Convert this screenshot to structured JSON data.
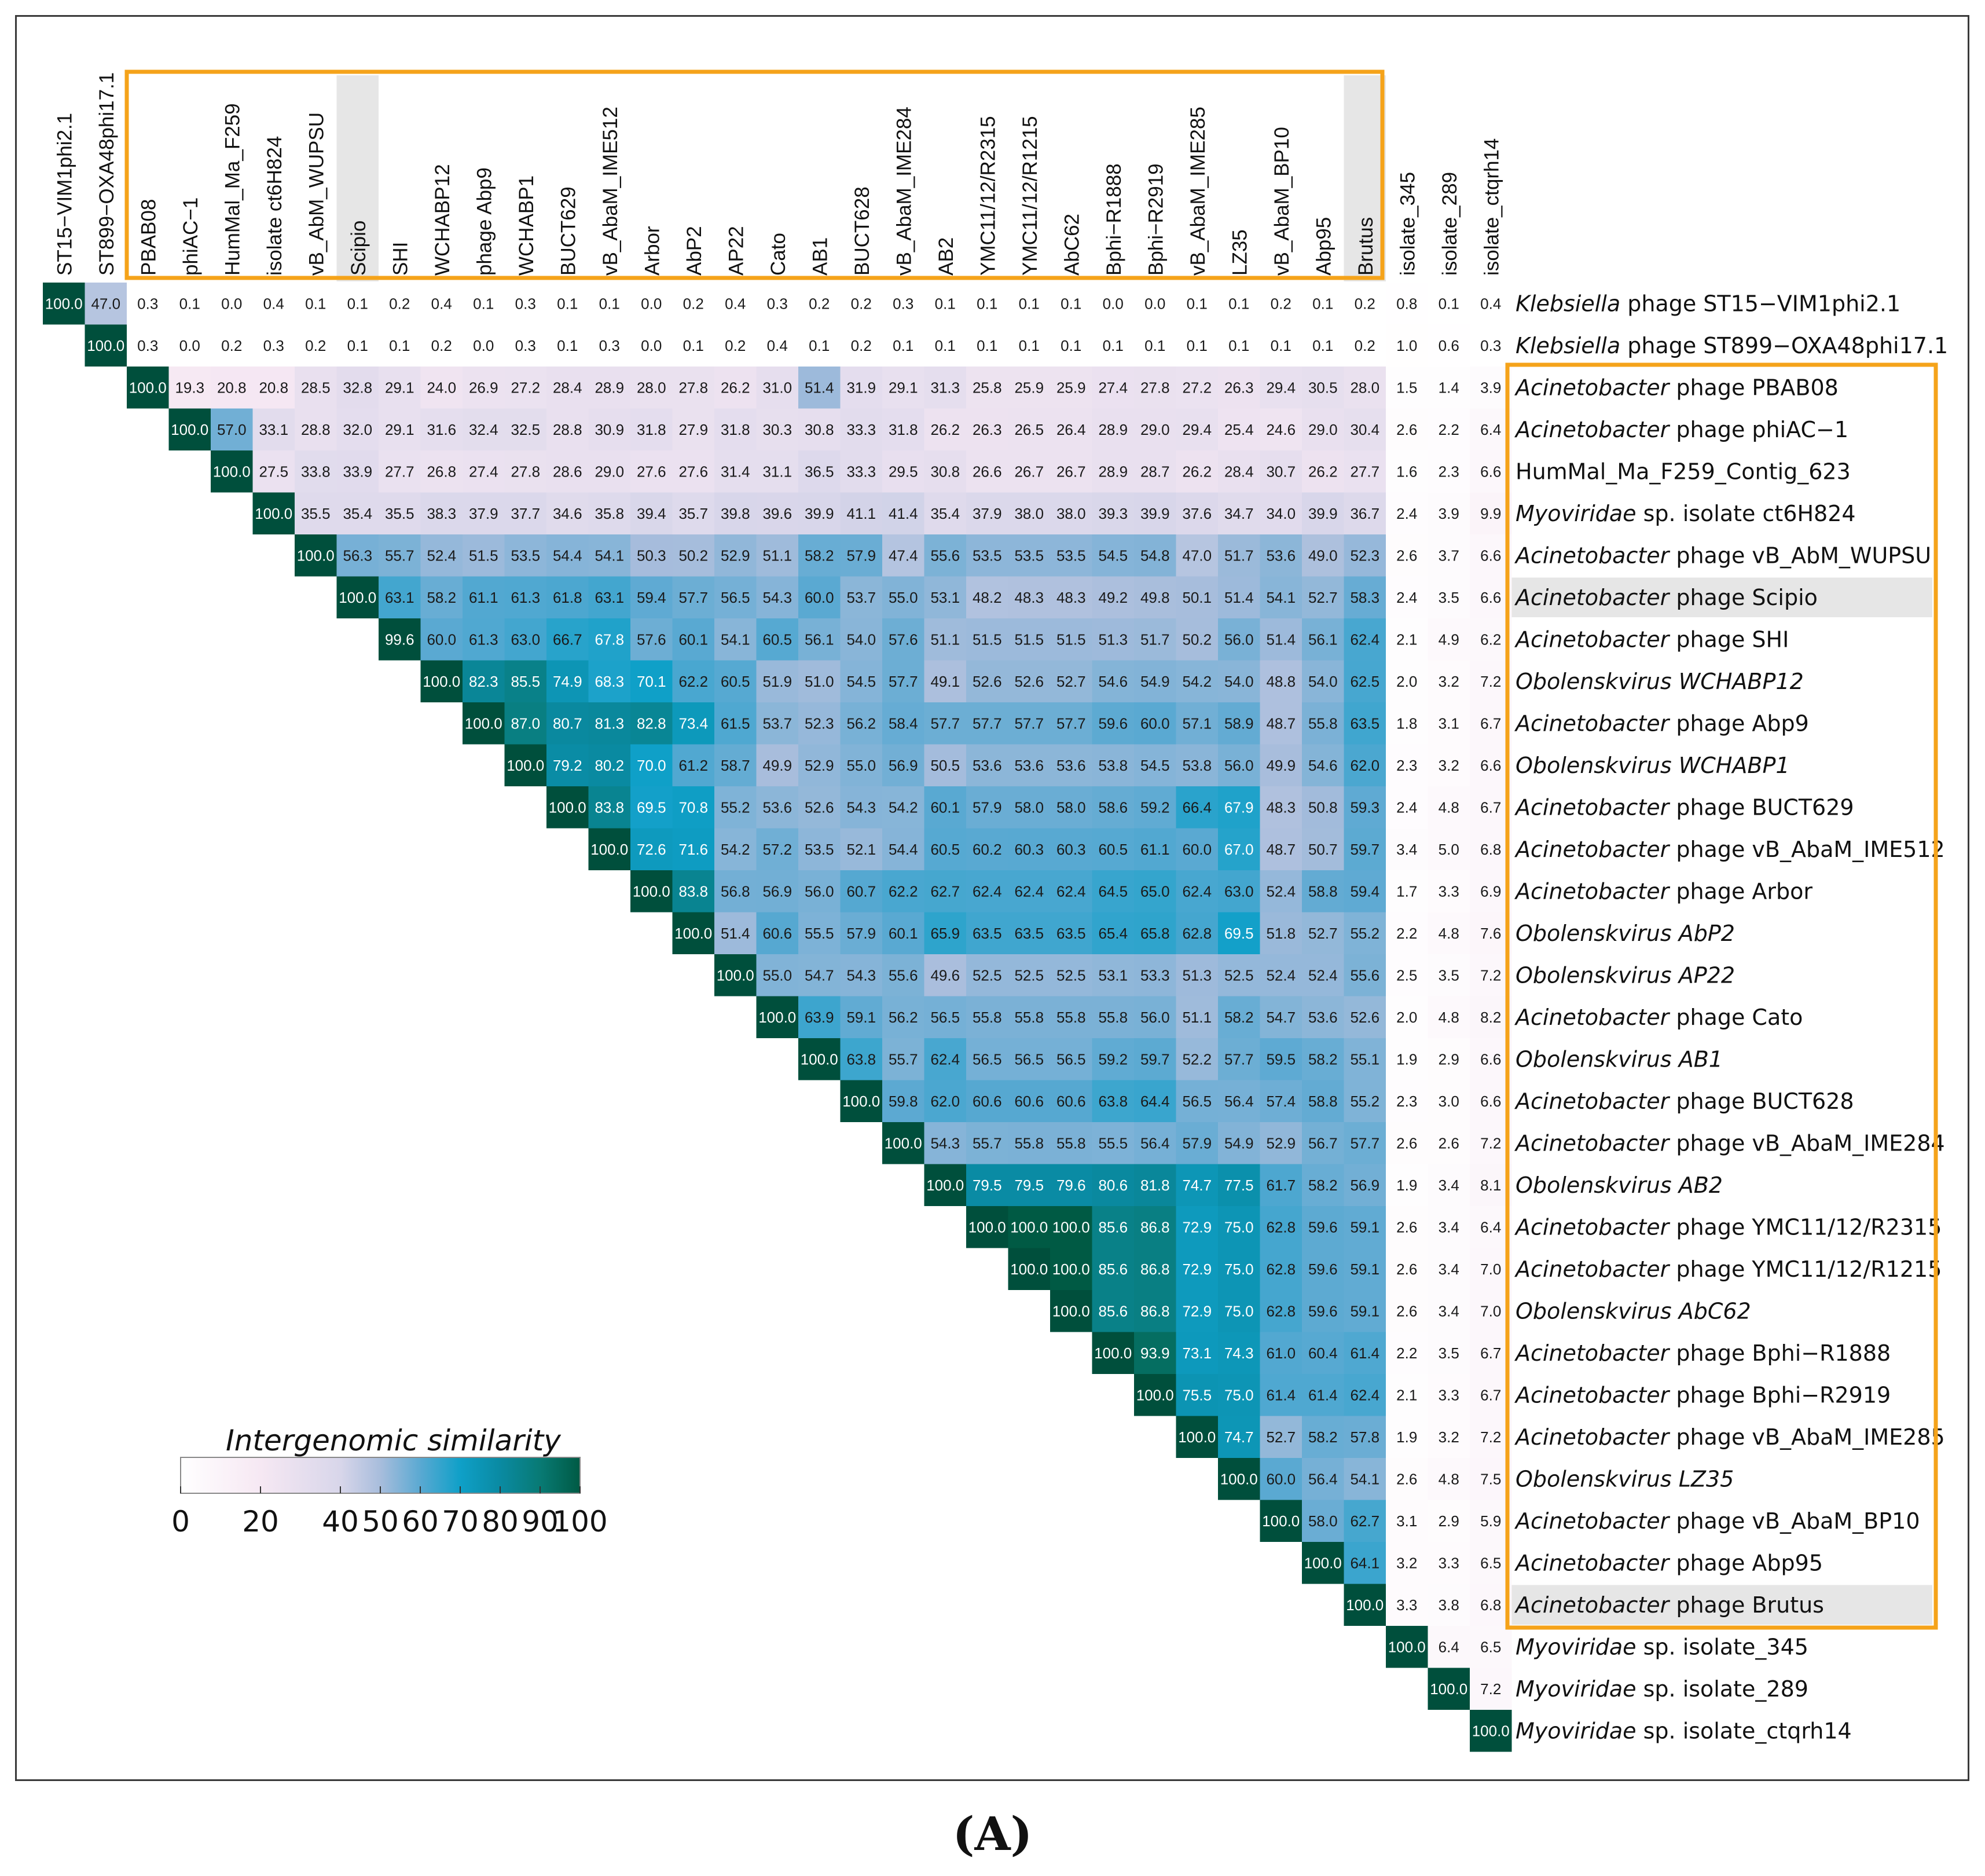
{
  "figure": {
    "panel_label": "(A)"
  },
  "chart_data": {
    "type": "heatmap",
    "title": "",
    "legend_title": "Intergenomic similarity",
    "legend_ticks": [
      0,
      20,
      40,
      50,
      60,
      70,
      80,
      90,
      100
    ],
    "value_range": [
      0,
      100
    ],
    "colors": {
      "stops": [
        "#ffffff",
        "#f6e8f3",
        "#d8d6ea",
        "#a8bddc",
        "#5aa9d2",
        "#0fa0c8",
        "#0a8aa2",
        "#087a74",
        "#005a44"
      ],
      "box": "#f5a31a",
      "highlight": "#e6e6e6"
    },
    "column_labels": [
      "ST15−VIM1phi2.1",
      "ST899−OXA48phi17.1",
      "PBAB08",
      "phiAC−1",
      "HumMal_Ma_F259",
      "isolate ct6H824",
      "vB_AbM_WUPSU",
      "Scipio",
      "SHI",
      "WCHABP12",
      "phage Abp9",
      "WCHABP1",
      "BUCT629",
      "vB_AbaM_IME512",
      "Arbor",
      "AbP2",
      "AP22",
      "Cato",
      "AB1",
      "BUCT628",
      "vB_AbaM_IME284",
      "AB2",
      "YMC11/12/R2315",
      "YMC11/12/R1215",
      "AbC62",
      "Bphi−R1888",
      "Bphi−R2919",
      "vB_AbaM_IME285",
      "LZ35",
      "vB_AbaM_BP10",
      "Abp95",
      "Brutus",
      "isolate_345",
      "isolate_289",
      "isolate_ctqrh14"
    ],
    "row_labels": [
      {
        "italic": "Klebsiella",
        "rest": " phage ST15−VIM1phi2.1"
      },
      {
        "italic": "Klebsiella",
        "rest": " phage ST899−OXA48phi17.1"
      },
      {
        "italic": "Acinetobacter",
        "rest": " phage PBAB08"
      },
      {
        "italic": "Acinetobacter",
        "rest": " phage phiAC−1"
      },
      {
        "italic": "",
        "rest": "HumMal_Ma_F259_Contig_623"
      },
      {
        "italic": "Myoviridae",
        "rest": " sp. isolate ct6H824"
      },
      {
        "italic": "Acinetobacter",
        "rest": " phage vB_AbM_WUPSU"
      },
      {
        "italic": "Acinetobacter",
        "rest": " phage Scipio"
      },
      {
        "italic": "Acinetobacter",
        "rest": " phage SHI"
      },
      {
        "italic": "Obolenskvirus WCHABP12",
        "rest": ""
      },
      {
        "italic": "Acinetobacter",
        "rest": " phage Abp9"
      },
      {
        "italic": "Obolenskvirus WCHABP1",
        "rest": ""
      },
      {
        "italic": "Acinetobacter",
        "rest": " phage BUCT629"
      },
      {
        "italic": "Acinetobacter",
        "rest": " phage vB_AbaM_IME512"
      },
      {
        "italic": "Acinetobacter",
        "rest": " phage Arbor"
      },
      {
        "italic": "Obolenskvirus AbP2",
        "rest": ""
      },
      {
        "italic": "Obolenskvirus AP22",
        "rest": ""
      },
      {
        "italic": "Acinetobacter",
        "rest": " phage Cato"
      },
      {
        "italic": "Obolenskvirus AB1",
        "rest": ""
      },
      {
        "italic": "Acinetobacter",
        "rest": " phage BUCT628"
      },
      {
        "italic": "Acinetobacter",
        "rest": " phage vB_AbaM_IME284"
      },
      {
        "italic": "Obolenskvirus AB2",
        "rest": ""
      },
      {
        "italic": "Acinetobacter",
        "rest": " phage YMC11/12/R2315"
      },
      {
        "italic": "Acinetobacter",
        "rest": " phage YMC11/12/R1215"
      },
      {
        "italic": "Obolenskvirus AbC62",
        "rest": ""
      },
      {
        "italic": "Acinetobacter",
        "rest": " phage Bphi−R1888"
      },
      {
        "italic": "Acinetobacter",
        "rest": " phage Bphi−R2919"
      },
      {
        "italic": "Acinetobacter",
        "rest": " phage vB_AbaM_IME285"
      },
      {
        "italic": "Obolenskvirus LZ35",
        "rest": ""
      },
      {
        "italic": "Acinetobacter",
        "rest": " phage vB_AbaM_BP10"
      },
      {
        "italic": "Acinetobacter",
        "rest": " phage Abp95"
      },
      {
        "italic": "Acinetobacter",
        "rest": " phage Brutus"
      },
      {
        "italic": "Myoviridae",
        "rest": " sp. isolate_345"
      },
      {
        "italic": "Myoviridae",
        "rest": " sp. isolate_289"
      },
      {
        "italic": "Myoviridae",
        "rest": " sp. isolate_ctqrh14"
      }
    ],
    "highlighted": [
      "Scipio",
      "Brutus"
    ],
    "boxed_range": {
      "first": "PBAB08",
      "last": "Brutus"
    },
    "values": [
      [
        100.0,
        47.0,
        0.3,
        0.1,
        0.0,
        0.4,
        0.1,
        0.1,
        0.2,
        0.4,
        0.1,
        0.3,
        0.1,
        0.1,
        0.0,
        0.2,
        0.4,
        0.3,
        0.2,
        0.2,
        0.3,
        0.1,
        0.1,
        0.1,
        0.1,
        0.0,
        0.0,
        0.1,
        0.1,
        0.2,
        0.1,
        0.2,
        0.8,
        0.1,
        0.4
      ],
      [
        100.0,
        0.3,
        0.0,
        0.2,
        0.3,
        0.2,
        0.1,
        0.1,
        0.2,
        0.0,
        0.3,
        0.1,
        0.3,
        0.0,
        0.1,
        0.2,
        0.4,
        0.1,
        0.2,
        0.1,
        0.1,
        0.1,
        0.1,
        0.1,
        0.1,
        0.1,
        0.1,
        0.1,
        0.1,
        0.1,
        0.2,
        1.0,
        0.6,
        0.3
      ],
      [
        100.0,
        19.3,
        20.8,
        20.8,
        28.5,
        32.8,
        29.1,
        24.0,
        26.9,
        27.2,
        28.4,
        28.9,
        28.0,
        27.8,
        26.2,
        31.0,
        51.4,
        31.9,
        29.1,
        31.3,
        25.8,
        25.9,
        25.9,
        27.4,
        27.8,
        27.2,
        26.3,
        29.4,
        30.5,
        28.0,
        1.5,
        1.4,
        3.9
      ],
      [
        100.0,
        57.0,
        33.1,
        28.8,
        32.0,
        29.1,
        31.6,
        32.4,
        32.5,
        28.8,
        30.9,
        31.8,
        27.9,
        31.8,
        30.3,
        30.8,
        33.3,
        31.8,
        26.2,
        26.3,
        26.5,
        26.4,
        28.9,
        29.0,
        29.4,
        25.4,
        24.6,
        29.0,
        30.4,
        2.6,
        2.2,
        6.4
      ],
      [
        100.0,
        27.5,
        33.8,
        33.9,
        27.7,
        26.8,
        27.4,
        27.8,
        28.6,
        29.0,
        27.6,
        27.6,
        31.4,
        31.1,
        36.5,
        33.3,
        29.5,
        30.8,
        26.6,
        26.7,
        26.7,
        28.9,
        28.7,
        26.2,
        28.4,
        30.7,
        26.2,
        27.7,
        1.6,
        2.3,
        6.6
      ],
      [
        100.0,
        35.5,
        35.4,
        35.5,
        38.3,
        37.9,
        37.7,
        34.6,
        35.8,
        39.4,
        35.7,
        39.8,
        39.6,
        39.9,
        41.1,
        41.4,
        35.4,
        37.9,
        38.0,
        38.0,
        39.3,
        39.9,
        37.6,
        34.7,
        34.0,
        39.9,
        36.7,
        2.4,
        3.9,
        9.9
      ],
      [
        100.0,
        56.3,
        55.7,
        52.4,
        51.5,
        53.5,
        54.4,
        54.1,
        50.3,
        50.2,
        52.9,
        51.1,
        58.2,
        57.9,
        47.4,
        55.6,
        53.5,
        53.5,
        53.5,
        54.5,
        54.8,
        47.0,
        51.7,
        53.6,
        49.0,
        52.3,
        2.6,
        3.7,
        6.6
      ],
      [
        100.0,
        63.1,
        58.2,
        61.1,
        61.3,
        61.8,
        63.1,
        59.4,
        57.7,
        56.5,
        54.3,
        60.0,
        53.7,
        55.0,
        53.1,
        48.2,
        48.3,
        48.3,
        49.2,
        49.8,
        50.1,
        51.4,
        54.1,
        52.7,
        58.3,
        2.4,
        3.5,
        6.6
      ],
      [
        99.6,
        60.0,
        61.3,
        63.0,
        66.7,
        67.8,
        57.6,
        60.1,
        54.1,
        60.5,
        56.1,
        54.0,
        57.6,
        51.1,
        51.5,
        51.5,
        51.5,
        51.3,
        51.7,
        50.2,
        56.0,
        51.4,
        56.1,
        62.4,
        2.1,
        4.9,
        6.2
      ],
      [
        100.0,
        82.3,
        85.5,
        74.9,
        68.3,
        70.1,
        62.2,
        60.5,
        51.9,
        51.0,
        54.5,
        57.7,
        49.1,
        52.6,
        52.6,
        52.7,
        54.6,
        54.9,
        54.2,
        54.0,
        48.8,
        54.0,
        62.5,
        2.0,
        3.2,
        7.2
      ],
      [
        100.0,
        87.0,
        80.7,
        81.3,
        82.8,
        73.4,
        61.5,
        53.7,
        52.3,
        56.2,
        58.4,
        57.7,
        57.7,
        57.7,
        57.7,
        59.6,
        60.0,
        57.1,
        58.9,
        48.7,
        55.8,
        63.5,
        1.8,
        3.1,
        6.7
      ],
      [
        100.0,
        79.2,
        80.2,
        70.0,
        61.2,
        58.7,
        49.9,
        52.9,
        55.0,
        56.9,
        50.5,
        53.6,
        53.6,
        53.6,
        53.8,
        54.5,
        53.8,
        56.0,
        49.9,
        54.6,
        62.0,
        2.3,
        3.2,
        6.6
      ],
      [
        100.0,
        83.8,
        69.5,
        70.8,
        55.2,
        53.6,
        52.6,
        54.3,
        54.2,
        60.1,
        57.9,
        58.0,
        58.0,
        58.6,
        59.2,
        66.4,
        67.9,
        48.3,
        50.8,
        59.3,
        2.4,
        4.8,
        6.7
      ],
      [
        100.0,
        72.6,
        71.6,
        54.2,
        57.2,
        53.5,
        52.1,
        54.4,
        60.5,
        60.2,
        60.3,
        60.3,
        60.5,
        61.1,
        60.0,
        67.0,
        48.7,
        50.7,
        59.7,
        3.4,
        5.0,
        6.8
      ],
      [
        100.0,
        83.8,
        56.8,
        56.9,
        56.0,
        60.7,
        62.2,
        62.7,
        62.4,
        62.4,
        62.4,
        64.5,
        65.0,
        62.4,
        63.0,
        52.4,
        58.8,
        59.4,
        1.7,
        3.3,
        6.9
      ],
      [
        100.0,
        51.4,
        60.6,
        55.5,
        57.9,
        60.1,
        65.9,
        63.5,
        63.5,
        63.5,
        65.4,
        65.8,
        62.8,
        69.5,
        51.8,
        52.7,
        55.2,
        2.2,
        4.8,
        7.6
      ],
      [
        100.0,
        55.0,
        54.7,
        54.3,
        55.6,
        49.6,
        52.5,
        52.5,
        52.5,
        53.1,
        53.3,
        51.3,
        52.5,
        52.4,
        52.4,
        55.6,
        2.5,
        3.5,
        7.2
      ],
      [
        100.0,
        63.9,
        59.1,
        56.2,
        56.5,
        55.8,
        55.8,
        55.8,
        55.8,
        56.0,
        51.1,
        58.2,
        54.7,
        53.6,
        52.6,
        2.0,
        4.8,
        8.2
      ],
      [
        100.0,
        63.8,
        55.7,
        62.4,
        56.5,
        56.5,
        56.5,
        59.2,
        59.7,
        52.2,
        57.7,
        59.5,
        58.2,
        55.1,
        1.9,
        2.9,
        6.6
      ],
      [
        100.0,
        59.8,
        62.0,
        60.6,
        60.6,
        60.6,
        63.8,
        64.4,
        56.5,
        56.4,
        57.4,
        58.8,
        55.2,
        2.3,
        3.0,
        6.6
      ],
      [
        100.0,
        54.3,
        55.7,
        55.8,
        55.8,
        55.5,
        56.4,
        57.9,
        54.9,
        52.9,
        56.7,
        57.7,
        2.6,
        2.6,
        7.2
      ],
      [
        100.0,
        79.5,
        79.5,
        79.6,
        80.6,
        81.8,
        74.7,
        77.5,
        61.7,
        58.2,
        56.9,
        1.9,
        3.4,
        8.1
      ],
      [
        100.0,
        100.0,
        100.0,
        85.6,
        86.8,
        72.9,
        75.0,
        62.8,
        59.6,
        59.1,
        2.6,
        3.4,
        6.4
      ],
      [
        100.0,
        100.0,
        85.6,
        86.8,
        72.9,
        75.0,
        62.8,
        59.6,
        59.1,
        2.6,
        3.4,
        7.0
      ],
      [
        100.0,
        85.6,
        86.8,
        72.9,
        75.0,
        62.8,
        59.6,
        59.1,
        2.6,
        3.4,
        7.0
      ],
      [
        100.0,
        93.9,
        73.1,
        74.3,
        61.0,
        60.4,
        61.4,
        2.2,
        3.5,
        6.7
      ],
      [
        100.0,
        75.5,
        75.0,
        61.4,
        61.4,
        62.4,
        2.1,
        3.3,
        6.7
      ],
      [
        100.0,
        74.7,
        52.7,
        58.2,
        57.8,
        1.9,
        3.2,
        7.2
      ],
      [
        100.0,
        60.0,
        56.4,
        54.1,
        2.6,
        4.8,
        7.5
      ],
      [
        100.0,
        58.0,
        62.7,
        3.1,
        2.9,
        5.9
      ],
      [
        100.0,
        64.1,
        3.2,
        3.3,
        6.5
      ],
      [
        100.0,
        3.3,
        3.8,
        6.8
      ],
      [
        100.0,
        6.4,
        6.5
      ],
      [
        100.0,
        7.2
      ],
      [
        100.0
      ]
    ],
    "value_format": "one decimal per cell, upper triangle only (row i, columns i..n)"
  }
}
